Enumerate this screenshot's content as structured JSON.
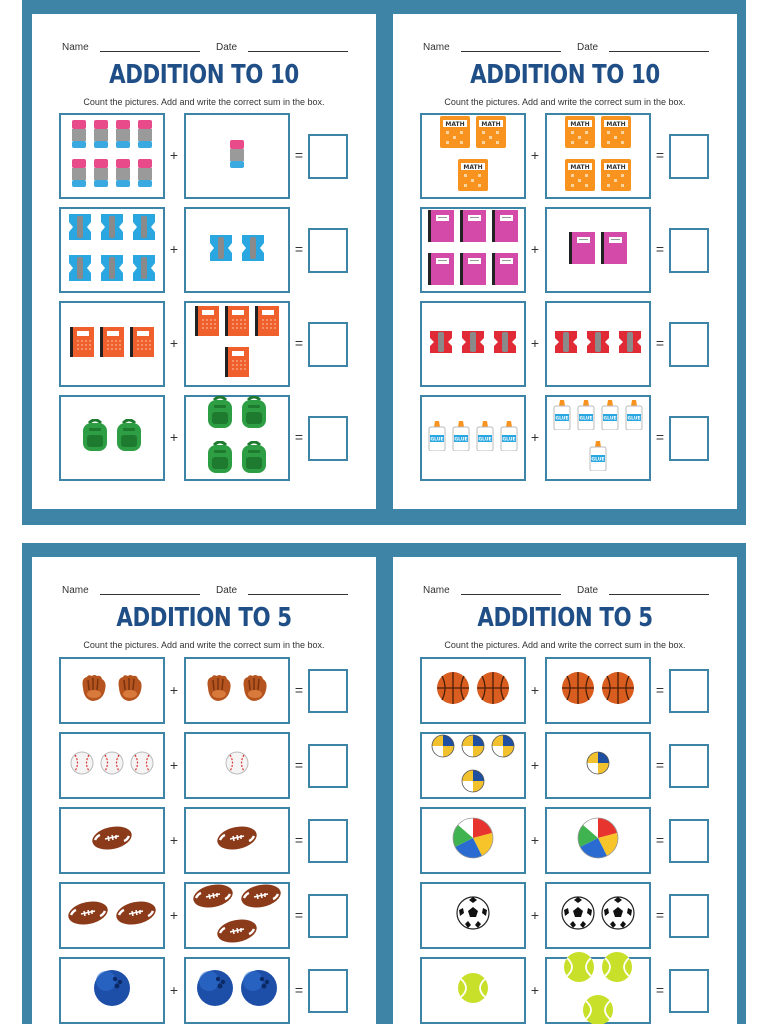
{
  "common": {
    "name_label": "Name",
    "date_label": "Date",
    "instructions": "Count the pictures. Add and write the correct sum in the box.",
    "plus": "+",
    "equals": "="
  },
  "sheets": [
    {
      "title": "ADDITION TO 10",
      "rows": [
        {
          "left": {
            "icon": "eraser-icon",
            "count": 8
          },
          "right": {
            "icon": "eraser-icon",
            "count": 1
          }
        },
        {
          "left": {
            "icon": "sharpener-blue-icon",
            "count": 6
          },
          "right": {
            "icon": "sharpener-blue-icon",
            "count": 2
          }
        },
        {
          "left": {
            "icon": "notebook-orange-icon",
            "count": 3
          },
          "right": {
            "icon": "notebook-orange-icon",
            "count": 4
          }
        },
        {
          "left": {
            "icon": "backpack-icon",
            "count": 2
          },
          "right": {
            "icon": "backpack-icon",
            "count": 4
          }
        }
      ]
    },
    {
      "title": "ADDITION TO 10",
      "rows": [
        {
          "left": {
            "icon": "math-book-icon",
            "count": 3
          },
          "right": {
            "icon": "math-book-icon",
            "count": 4
          }
        },
        {
          "left": {
            "icon": "notebook-pink-icon",
            "count": 6
          },
          "right": {
            "icon": "notebook-pink-icon",
            "count": 2
          }
        },
        {
          "left": {
            "icon": "sharpener-red-icon",
            "count": 3
          },
          "right": {
            "icon": "sharpener-red-icon",
            "count": 3
          }
        },
        {
          "left": {
            "icon": "glue-icon",
            "count": 4
          },
          "right": {
            "icon": "glue-icon",
            "count": 5
          }
        }
      ]
    },
    {
      "title": "ADDITION TO 5",
      "rows": [
        {
          "left": {
            "icon": "baseball-glove-icon",
            "count": 2
          },
          "right": {
            "icon": "baseball-glove-icon",
            "count": 2
          }
        },
        {
          "left": {
            "icon": "baseball-icon",
            "count": 3
          },
          "right": {
            "icon": "baseball-icon",
            "count": 1
          }
        },
        {
          "left": {
            "icon": "football-icon",
            "count": 1
          },
          "right": {
            "icon": "football-icon",
            "count": 1
          }
        },
        {
          "left": {
            "icon": "football-icon",
            "count": 2
          },
          "right": {
            "icon": "football-icon",
            "count": 3
          }
        },
        {
          "left": {
            "icon": "bowling-ball-icon",
            "count": 1
          },
          "right": {
            "icon": "bowling-ball-icon",
            "count": 2
          }
        }
      ]
    },
    {
      "title": "ADDITION TO 5",
      "rows": [
        {
          "left": {
            "icon": "basketball-icon",
            "count": 2
          },
          "right": {
            "icon": "basketball-icon",
            "count": 2
          }
        },
        {
          "left": {
            "icon": "volleyball-icon",
            "count": 4
          },
          "right": {
            "icon": "volleyball-icon",
            "count": 1
          }
        },
        {
          "left": {
            "icon": "beach-ball-icon",
            "count": 1
          },
          "right": {
            "icon": "beach-ball-icon",
            "count": 1
          }
        },
        {
          "left": {
            "icon": "soccer-ball-icon",
            "count": 1
          },
          "right": {
            "icon": "soccer-ball-icon",
            "count": 2
          }
        },
        {
          "left": {
            "icon": "tennis-ball-icon",
            "count": 1
          },
          "right": {
            "icon": "tennis-ball-icon",
            "count": 3
          }
        }
      ]
    }
  ]
}
